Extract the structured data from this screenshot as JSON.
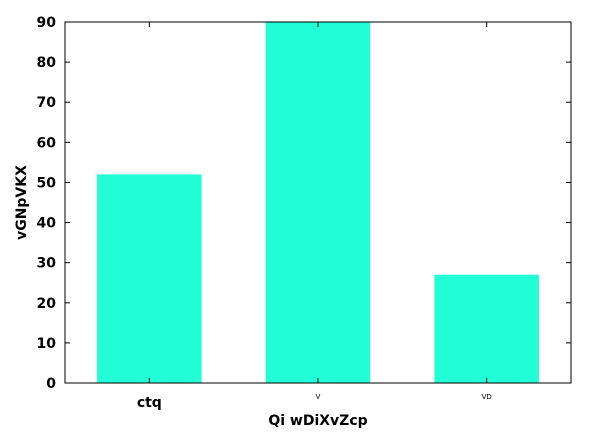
{
  "chart_data": {
    "type": "bar",
    "title": "",
    "xlabel": "Qi wDiXvZcp",
    "ylabel": "vGNpVKX",
    "categories": [
      "ctq",
      "V",
      "VD"
    ],
    "values": [
      52,
      90,
      27
    ],
    "ylim": [
      0,
      90
    ],
    "yticks": [
      0,
      10,
      20,
      30,
      40,
      50,
      60,
      70,
      80,
      90
    ],
    "bar_color": "#22ffd6",
    "grid": false,
    "legend": "none"
  }
}
